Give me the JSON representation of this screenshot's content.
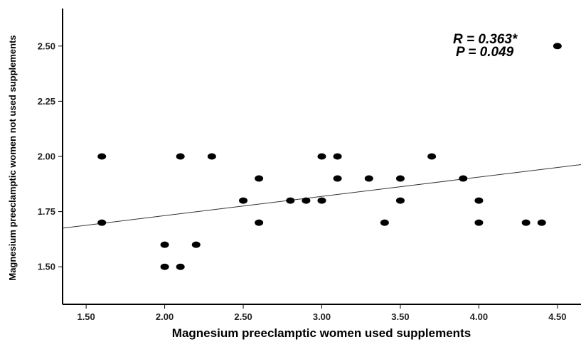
{
  "chart_data": {
    "type": "scatter",
    "title": "",
    "xlabel": "Magnesium preeclamptic women  used supplements",
    "ylabel": "Magnesium preeclamptic women not used supplements",
    "xlim": [
      1.35,
      4.65
    ],
    "ylim": [
      1.33,
      2.67
    ],
    "x_ticks": [
      "1.50",
      "2.00",
      "2.50",
      "3.00",
      "3.50",
      "4.00",
      "4.50"
    ],
    "y_ticks": [
      "1.50",
      "1.75",
      "2.00",
      "2.25",
      "2.50"
    ],
    "points": [
      {
        "x": 1.6,
        "y": 2.0
      },
      {
        "x": 1.6,
        "y": 1.7
      },
      {
        "x": 2.0,
        "y": 1.6
      },
      {
        "x": 2.0,
        "y": 1.5
      },
      {
        "x": 2.1,
        "y": 2.0
      },
      {
        "x": 2.1,
        "y": 1.5
      },
      {
        "x": 2.2,
        "y": 1.6
      },
      {
        "x": 2.3,
        "y": 2.0
      },
      {
        "x": 2.5,
        "y": 1.8
      },
      {
        "x": 2.6,
        "y": 1.9
      },
      {
        "x": 2.6,
        "y": 1.7
      },
      {
        "x": 2.8,
        "y": 1.8
      },
      {
        "x": 2.9,
        "y": 1.8
      },
      {
        "x": 3.0,
        "y": 2.0
      },
      {
        "x": 3.0,
        "y": 1.8
      },
      {
        "x": 3.1,
        "y": 2.0
      },
      {
        "x": 3.1,
        "y": 1.9
      },
      {
        "x": 3.3,
        "y": 1.9
      },
      {
        "x": 3.4,
        "y": 1.7
      },
      {
        "x": 3.5,
        "y": 1.9
      },
      {
        "x": 3.5,
        "y": 1.8
      },
      {
        "x": 3.7,
        "y": 2.0
      },
      {
        "x": 3.9,
        "y": 1.9
      },
      {
        "x": 4.0,
        "y": 1.8
      },
      {
        "x": 4.0,
        "y": 1.7
      },
      {
        "x": 4.3,
        "y": 1.7
      },
      {
        "x": 4.4,
        "y": 1.7
      },
      {
        "x": 4.5,
        "y": 2.5
      }
    ],
    "fit_line": {
      "x": [
        1.35,
        4.65
      ],
      "y": [
        1.675,
        1.963
      ]
    },
    "annotations": [
      "R = 0.363*",
      "P = 0.049"
    ],
    "grid": false,
    "colors": {
      "points": "#000000",
      "fit_line": "#333333",
      "axes": "#000000"
    }
  }
}
